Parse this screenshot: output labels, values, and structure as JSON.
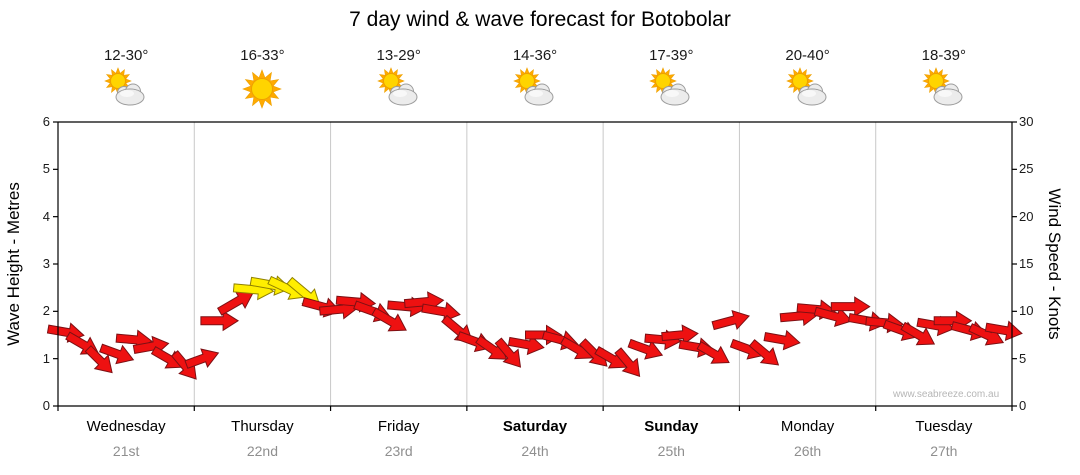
{
  "title": "7 day wind & wave forecast for Botobolar",
  "watermark": "www.seabreeze.com.au",
  "left_axis": {
    "title": "Wave Height - Metres",
    "ticks": [
      "0",
      "1",
      "2",
      "3",
      "4",
      "5",
      "6"
    ]
  },
  "right_axis": {
    "title": "Wind Speed - Knots",
    "ticks": [
      "0",
      "5",
      "10",
      "15",
      "20",
      "25",
      "30"
    ]
  },
  "days": [
    {
      "name": "Wednesday",
      "date": "21st",
      "temp": "12-30°",
      "icon": "sun-cloud",
      "bold": false
    },
    {
      "name": "Thursday",
      "date": "22nd",
      "temp": "16-33°",
      "icon": "sun",
      "bold": false
    },
    {
      "name": "Friday",
      "date": "23rd",
      "temp": "13-29°",
      "icon": "sun-cloud",
      "bold": false
    },
    {
      "name": "Saturday",
      "date": "24th",
      "temp": "14-36°",
      "icon": "sun-cloud",
      "bold": true
    },
    {
      "name": "Sunday",
      "date": "25th",
      "temp": "17-39°",
      "icon": "sun-cloud",
      "bold": true
    },
    {
      "name": "Monday",
      "date": "26th",
      "temp": "20-40°",
      "icon": "sun-cloud",
      "bold": false
    },
    {
      "name": "Tuesday",
      "date": "27th",
      "temp": "18-39°",
      "icon": "sun-cloud",
      "bold": false
    }
  ],
  "colors": {
    "arrow": "#ee1111",
    "arrow_outline": "#7c1014",
    "arrow_strong": "#ffee00",
    "arrow_strong_outline": "#8f8000",
    "grid": "#c8c8c8",
    "axis": "#000000",
    "sun": "#ffd400",
    "sun_outline": "#eda000",
    "sun_rays": "#ffaa00",
    "cloud": "#ececec",
    "cloud_outline": "#9c9c9c",
    "date_text": "#8f8f8f",
    "watermark_text": "#b6b6b6"
  },
  "chart_data": {
    "type": "scatter",
    "marker": "wind-direction-arrow",
    "title": "7 day wind & wave forecast for Botobolar",
    "x_days": [
      "Wednesday 21st",
      "Thursday 22nd",
      "Friday 23rd",
      "Saturday 24th",
      "Sunday 25th",
      "Monday 26th",
      "Tuesday 27th"
    ],
    "points_per_day": 8,
    "y_axis_left": {
      "label": "Wave Height - Metres",
      "range": [
        0,
        6
      ]
    },
    "y_axis_right": {
      "label": "Wind Speed - Knots",
      "range": [
        0,
        30
      ]
    },
    "series_name": "Wind speed (knots) plotted against right axis, arrow glyphs show wind direction",
    "strong_threshold_knots": 11.75,
    "strong_color_note": "arrows at/above threshold are drawn yellow, others red",
    "wind_knots": [
      7.8,
      6.5,
      4.8,
      5.5,
      7.0,
      6.3,
      5.0,
      4.2,
      5.0,
      9.0,
      11.0,
      12.3,
      12.8,
      12.4,
      11.9,
      10.5,
      10.2,
      11.0,
      10.0,
      9.0,
      10.5,
      11.0,
      10.0,
      8.0,
      6.8,
      6.0,
      5.5,
      6.5,
      7.5,
      7.0,
      6.0,
      5.5,
      5.0,
      4.5,
      6.0,
      7.0,
      7.5,
      6.2,
      5.5,
      9.0,
      6.0,
      5.5,
      7.0,
      9.5,
      10.2,
      9.5,
      10.5,
      9.0,
      8.8,
      8.0,
      7.5,
      8.5,
      9.0,
      8.0,
      7.5,
      8.0
    ],
    "wind_dir_deg": [
      100,
      120,
      135,
      110,
      95,
      80,
      120,
      140,
      70,
      90,
      60,
      95,
      100,
      115,
      130,
      105,
      85,
      95,
      110,
      120,
      95,
      85,
      100,
      130,
      110,
      125,
      140,
      100,
      90,
      105,
      120,
      135,
      120,
      140,
      110,
      95,
      85,
      100,
      120,
      75,
      110,
      130,
      100,
      85,
      95,
      105,
      90,
      100,
      95,
      110,
      120,
      100,
      90,
      105,
      115,
      100
    ]
  }
}
